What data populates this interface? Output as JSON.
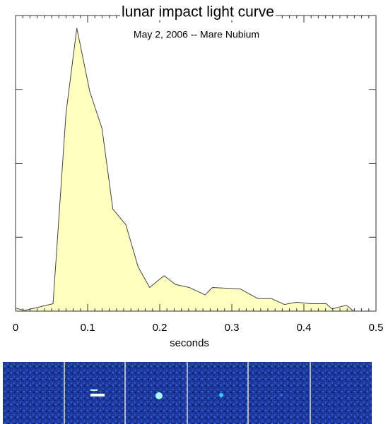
{
  "chart_data": {
    "type": "area",
    "title": "lunar impact light curve",
    "subtitle": "May 2, 2006 -- Mare Nubium",
    "x_label": "seconds",
    "x": [
      0,
      0.013,
      0.052,
      0.07,
      0.085,
      0.103,
      0.12,
      0.135,
      0.153,
      0.17,
      0.186,
      0.206,
      0.222,
      0.241,
      0.263,
      0.273,
      0.292,
      0.312,
      0.336,
      0.355,
      0.373,
      0.39,
      0.41,
      0.431,
      0.439,
      0.459,
      0.469
    ],
    "values": [
      0.04,
      0.01,
      0.1,
      2.68,
      3.83,
      2.97,
      2.47,
      1.38,
      1.17,
      0.6,
      0.32,
      0.48,
      0.36,
      0.32,
      0.22,
      0.32,
      0.31,
      0.3,
      0.17,
      0.17,
      0.09,
      0.12,
      0.1,
      0.1,
      0.03,
      0.08,
      0
    ],
    "color": "#ffffc0",
    "line_color": "#444444",
    "xlim": [
      0,
      0.5
    ],
    "xticks": [
      0,
      0.1,
      0.2,
      0.3,
      0.4,
      0.5
    ],
    "ylim": [
      0,
      4
    ],
    "yticks": [
      0,
      1,
      2,
      3,
      4
    ]
  }
}
